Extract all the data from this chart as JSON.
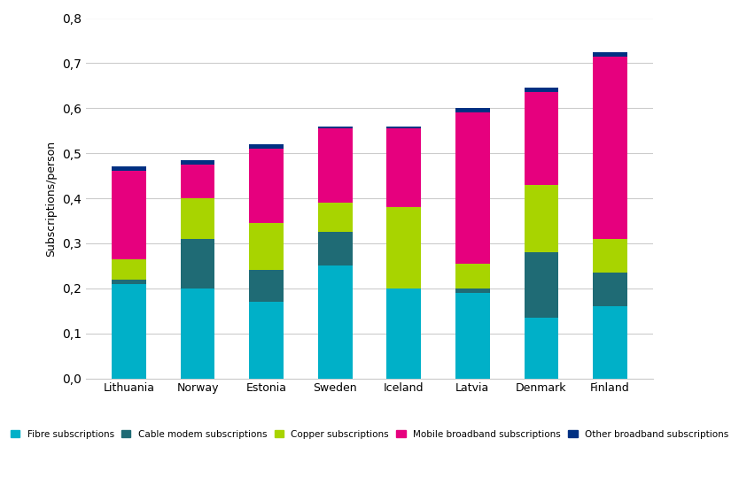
{
  "countries": [
    "Lithuania",
    "Norway",
    "Estonia",
    "Sweden",
    "Iceland",
    "Latvia",
    "Denmark",
    "Finland"
  ],
  "fibre": [
    0.21,
    0.2,
    0.17,
    0.25,
    0.2,
    0.19,
    0.135,
    0.16
  ],
  "cable_modem": [
    0.01,
    0.11,
    0.07,
    0.075,
    0.0,
    0.01,
    0.145,
    0.075
  ],
  "copper": [
    0.045,
    0.09,
    0.105,
    0.065,
    0.18,
    0.055,
    0.15,
    0.075
  ],
  "mobile_broadband": [
    0.195,
    0.075,
    0.165,
    0.165,
    0.175,
    0.335,
    0.205,
    0.405
  ],
  "other": [
    0.01,
    0.01,
    0.01,
    0.005,
    0.005,
    0.01,
    0.01,
    0.01
  ],
  "colors": {
    "fibre": "#00B0C8",
    "cable_modem": "#1F6B75",
    "copper": "#A8D400",
    "mobile_broadband": "#E6007E",
    "other": "#003082"
  },
  "ylabel": "Subscriptions/person",
  "ylim": [
    0,
    0.8
  ],
  "yticks": [
    0,
    0.1,
    0.2,
    0.3,
    0.4,
    0.5,
    0.6,
    0.7,
    0.8
  ],
  "legend_labels": [
    "Fibre subscriptions",
    "Cable modem subscriptions",
    "Copper subscriptions",
    "Mobile broadband subscriptions",
    "Other broadband subscriptions"
  ],
  "background_color": "#FFFFFF",
  "grid_color": "#CCCCCC"
}
